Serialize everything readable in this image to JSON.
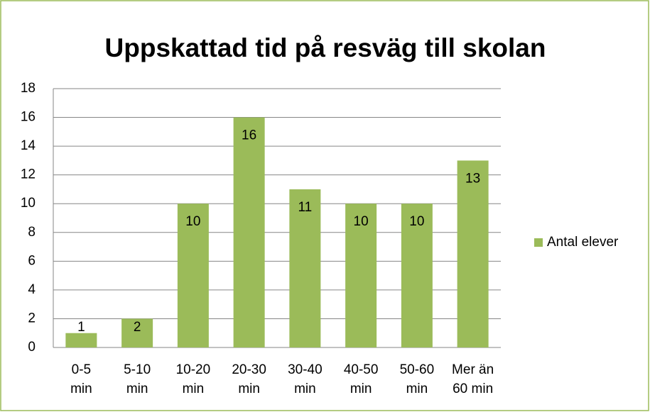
{
  "chart_data": {
    "type": "bar",
    "title": "Uppskattad tid på resväg till skolan",
    "categories": [
      "0-5\nmin",
      "5-10\nmin",
      "10-20\nmin",
      "20-30\nmin",
      "30-40\nmin",
      "40-50\nmin",
      "50-60\nmin",
      "Mer än\n60 min"
    ],
    "series": [
      {
        "name": "Antal elever",
        "color": "#9bbb59",
        "values": [
          1,
          2,
          10,
          16,
          11,
          10,
          10,
          13
        ]
      }
    ],
    "ylim": [
      0,
      18
    ],
    "yticks": [
      0,
      2,
      4,
      6,
      8,
      10,
      12,
      14,
      16,
      18
    ],
    "grid": true,
    "legend": "right"
  }
}
